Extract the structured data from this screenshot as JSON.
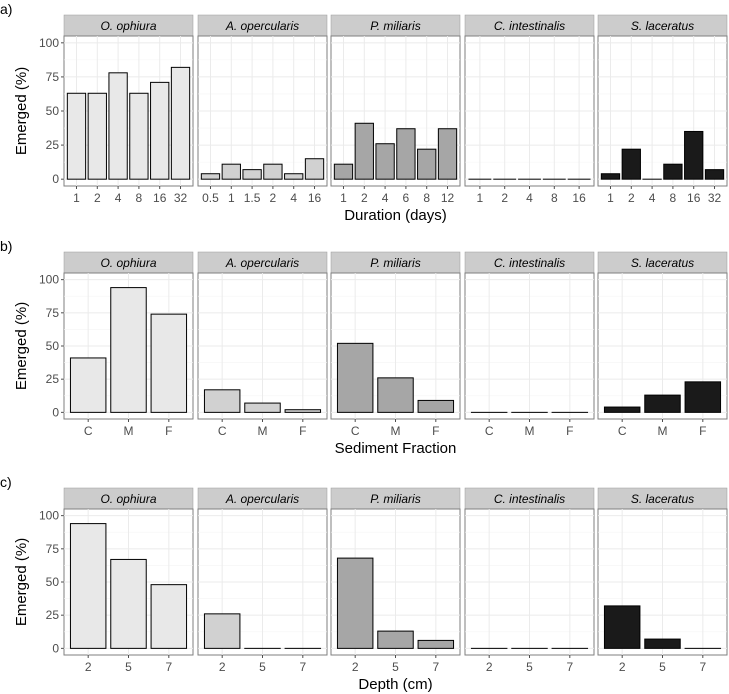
{
  "chart_data": [
    {
      "type": "bar",
      "panel_label": "a)",
      "ylabel": "Emerged (%)",
      "xlabel": "Duration (days)",
      "ylim": [
        0,
        100
      ],
      "yticks": [
        0,
        25,
        50,
        75,
        100
      ],
      "grid": true,
      "facets": [
        {
          "name": "O. ophiura",
          "categories": [
            "1",
            "2",
            "4",
            "8",
            "16",
            "32"
          ],
          "values": [
            63,
            63,
            78,
            63,
            71,
            82
          ],
          "color": "#e8e8e8"
        },
        {
          "name": "A. opercularis",
          "categories": [
            "0.5",
            "1",
            "1.5",
            "2",
            "4",
            "16"
          ],
          "values": [
            4,
            11,
            7,
            11,
            4,
            15
          ],
          "color": "#d1d1d1"
        },
        {
          "name": "P. miliaris",
          "categories": [
            "1",
            "2",
            "4",
            "6",
            "8",
            "12"
          ],
          "values": [
            11,
            41,
            26,
            37,
            22,
            37
          ],
          "color": "#a6a6a6"
        },
        {
          "name": "C. intestinalis",
          "categories": [
            "1",
            "2",
            "4",
            "8",
            "16"
          ],
          "values": [
            0,
            0,
            0,
            0,
            0
          ],
          "color": "#5e5e5e"
        },
        {
          "name": "S. laceratus",
          "categories": [
            "1",
            "2",
            "4",
            "8",
            "16",
            "32"
          ],
          "values": [
            4,
            22,
            0,
            11,
            35,
            7
          ],
          "color": "#1a1a1a"
        }
      ]
    },
    {
      "type": "bar",
      "panel_label": "b)",
      "ylabel": "Emerged (%)",
      "xlabel": "Sediment Fraction",
      "ylim": [
        0,
        100
      ],
      "yticks": [
        0,
        25,
        50,
        75,
        100
      ],
      "grid": true,
      "facets": [
        {
          "name": "O. ophiura",
          "categories": [
            "C",
            "M",
            "F"
          ],
          "values": [
            41,
            94,
            74
          ],
          "color": "#e8e8e8"
        },
        {
          "name": "A. opercularis",
          "categories": [
            "C",
            "M",
            "F"
          ],
          "values": [
            17,
            7,
            2
          ],
          "color": "#d1d1d1"
        },
        {
          "name": "P. miliaris",
          "categories": [
            "C",
            "M",
            "F"
          ],
          "values": [
            52,
            26,
            9
          ],
          "color": "#a6a6a6"
        },
        {
          "name": "C. intestinalis",
          "categories": [
            "C",
            "M",
            "F"
          ],
          "values": [
            0,
            0,
            0
          ],
          "color": "#5e5e5e"
        },
        {
          "name": "S. laceratus",
          "categories": [
            "C",
            "M",
            "F"
          ],
          "values": [
            4,
            13,
            23
          ],
          "color": "#1a1a1a"
        }
      ]
    },
    {
      "type": "bar",
      "panel_label": "c)",
      "ylabel": "Emerged (%)",
      "xlabel": "Depth (cm)",
      "ylim": [
        0,
        100
      ],
      "yticks": [
        0,
        25,
        50,
        75,
        100
      ],
      "grid": true,
      "facets": [
        {
          "name": "O. ophiura",
          "categories": [
            "2",
            "5",
            "7"
          ],
          "values": [
            94,
            67,
            48
          ],
          "color": "#e8e8e8"
        },
        {
          "name": "A. opercularis",
          "categories": [
            "2",
            "5",
            "7"
          ],
          "values": [
            26,
            0,
            0
          ],
          "color": "#d1d1d1"
        },
        {
          "name": "P. miliaris",
          "categories": [
            "2",
            "5",
            "7"
          ],
          "values": [
            68,
            13,
            6
          ],
          "color": "#a6a6a6"
        },
        {
          "name": "C. intestinalis",
          "categories": [
            "2",
            "5",
            "7"
          ],
          "values": [
            0,
            0,
            0
          ],
          "color": "#5e5e5e"
        },
        {
          "name": "S. laceratus",
          "categories": [
            "2",
            "5",
            "7"
          ],
          "values": [
            32,
            7,
            0
          ],
          "color": "#1a1a1a"
        }
      ]
    }
  ]
}
